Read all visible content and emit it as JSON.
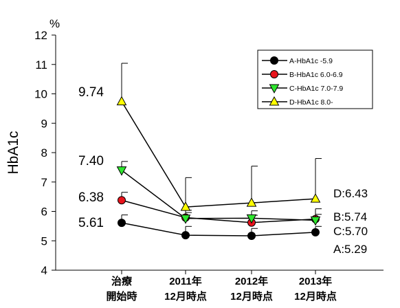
{
  "chart_data": {
    "type": "line",
    "unit_label": "%",
    "xlabel": "",
    "ylabel": "HbA1c",
    "ylim": [
      4,
      12
    ],
    "yticks": [
      4,
      5,
      6,
      7,
      8,
      9,
      10,
      11,
      12
    ],
    "grid": false,
    "legend_position": "top-right",
    "categories": [
      [
        "治療",
        "開始時"
      ],
      [
        "2011年",
        "12月時点"
      ],
      [
        "2012年",
        "12月時点"
      ],
      [
        "2013年",
        "12月時点"
      ]
    ],
    "series": [
      {
        "name": "A-HbA1c    -5.9",
        "marker": "circle",
        "color": "#000000",
        "values": [
          5.61,
          5.19,
          5.17,
          5.29
        ],
        "error_up": [
          0.27,
          0.3,
          0.25,
          0.2
        ]
      },
      {
        "name": "B-HbA1c 6.0-6.9",
        "marker": "circle",
        "color": "#e8141c",
        "values": [
          6.38,
          5.79,
          5.62,
          5.74
        ],
        "error_up": [
          0.27,
          0.25,
          0.25,
          0.35
        ]
      },
      {
        "name": "C-HbA1c 7.0-7.9",
        "marker": "triangle-down",
        "color": "#2ee62e",
        "values": [
          7.4,
          5.76,
          5.77,
          5.7
        ],
        "error_up": [
          0.3,
          0.2,
          0.25,
          0.2
        ]
      },
      {
        "name": "D-HbA1c 8.0-",
        "marker": "triangle-up",
        "color": "#ffff00",
        "values": [
          9.74,
          6.15,
          6.29,
          6.43
        ],
        "error_up": [
          1.3,
          1.0,
          1.25,
          1.37
        ]
      }
    ],
    "annotations": {
      "start": [
        "9.74",
        "7.40",
        "6.38",
        "5.61"
      ],
      "end": [
        "D:6.43",
        "B:5.74",
        "C:5.70",
        "A:5.29"
      ]
    }
  }
}
